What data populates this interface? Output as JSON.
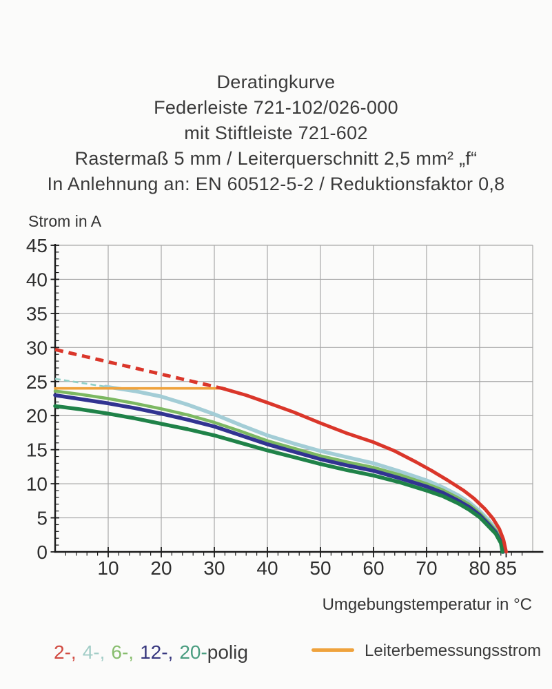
{
  "title": {
    "lines": [
      "Deratingkurve",
      "Federleiste 721-102/026-000",
      "mit Stiftleiste 721-602",
      "Rastermaß 5 mm / Leiterquerschnitt 2,5 mm² „f“",
      "In Anlehnung an: EN 60512-5-2 / Reduktionsfaktor 0,8"
    ]
  },
  "axes": {
    "y_title": "Strom in A",
    "x_title": "Umgebungstemperatur in °C"
  },
  "legend": {
    "poles": [
      {
        "label": "2-,",
        "color": "#d14b42",
        "gap": true
      },
      {
        "label": "4-,",
        "color": "#a2cdc7",
        "gap": true
      },
      {
        "label": "6-,",
        "color": "#87bd6d",
        "gap": true
      },
      {
        "label": "12-,",
        "color": "#38387f",
        "gap": true
      },
      {
        "label": "20-",
        "color": "#4a9d80",
        "gap": false
      },
      {
        "label": "polig",
        "color": "#3c3c3c",
        "gap": false
      }
    ],
    "rated": {
      "label": "Leiterbemessungsstrom",
      "color": "#efa23c"
    }
  },
  "chart_data": {
    "type": "line",
    "title": "Deratingkurve Federleiste 721-102/026-000 mit Stiftleiste 721-602",
    "subtitle": "Rastermaß 5 mm / Leiterquerschnitt 2,5 mm² „f“ — In Anlehnung an: EN 60512-5-2 / Reduktionsfaktor 0,8",
    "xlabel": "Umgebungstemperatur in °C",
    "ylabel": "Strom in A",
    "xlim": [
      0,
      90
    ],
    "ylim": [
      0,
      45
    ],
    "x_axis_end": 92,
    "grid": true,
    "legend_position": "bottom",
    "xticks_labeled": [
      10,
      20,
      30,
      40,
      50,
      60,
      70,
      80,
      85
    ],
    "yticks_labeled": [
      0,
      5,
      10,
      15,
      20,
      25,
      30,
      35,
      40,
      45
    ],
    "minor_x_step": 2,
    "minor_y_step": 1,
    "grid_x": [
      10,
      20,
      30,
      40,
      50,
      60,
      70,
      80,
      90
    ],
    "grid_y": [
      5,
      10,
      15,
      20,
      25,
      30,
      35,
      40,
      45
    ],
    "colors": {
      "grid": "#a8a8a8",
      "axis": "#1b1b1b",
      "tick_text": "#2e2e2e"
    },
    "series": [
      {
        "name": "4-polig",
        "color": "#a3cdd6",
        "width": 5.5,
        "segments": [
          {
            "style": "dashed",
            "color": "#90cfc6",
            "width": 2.6,
            "dash": "8 5",
            "points": [
              [
                0,
                25.4
              ],
              [
                9.5,
                24.25
              ]
            ]
          },
          {
            "style": "solid",
            "points": [
              [
                9.5,
                24.25
              ],
              [
                15,
                23.6
              ],
              [
                20,
                22.8
              ],
              [
                25,
                21.6
              ],
              [
                30,
                20.2
              ],
              [
                35,
                18.6
              ],
              [
                40,
                17.1
              ],
              [
                45,
                15.9
              ],
              [
                50,
                14.8
              ],
              [
                55,
                13.9
              ],
              [
                60,
                13.0
              ],
              [
                65,
                11.8
              ],
              [
                70,
                10.5
              ],
              [
                73,
                9.5
              ],
              [
                76,
                8.3
              ],
              [
                78,
                7.3
              ],
              [
                80,
                6.0
              ],
              [
                81.5,
                4.8
              ],
              [
                83,
                3.4
              ],
              [
                84,
                2.0
              ],
              [
                84.6,
                0
              ]
            ]
          }
        ]
      },
      {
        "name": "6-polig",
        "color": "#7cb862",
        "width": 4.5,
        "segments": [
          {
            "style": "solid",
            "points": [
              [
                0,
                23.6
              ],
              [
                5,
                23.1
              ],
              [
                10,
                22.5
              ],
              [
                15,
                21.8
              ],
              [
                20,
                21.0
              ],
              [
                25,
                20.1
              ],
              [
                30,
                19.0
              ],
              [
                35,
                17.7
              ],
              [
                40,
                16.3
              ],
              [
                45,
                15.2
              ],
              [
                50,
                14.1
              ],
              [
                55,
                13.2
              ],
              [
                60,
                12.4
              ],
              [
                65,
                11.3
              ],
              [
                70,
                10.0
              ],
              [
                73,
                9.1
              ],
              [
                76,
                7.9
              ],
              [
                78,
                7.0
              ],
              [
                80,
                5.7
              ],
              [
                81.5,
                4.5
              ],
              [
                83,
                3.2
              ],
              [
                84,
                1.8
              ],
              [
                84.5,
                0
              ]
            ]
          }
        ]
      },
      {
        "name": "12-polig",
        "color": "#313391",
        "width": 5.5,
        "segments": [
          {
            "style": "solid",
            "points": [
              [
                0,
                23.0
              ],
              [
                5,
                22.4
              ],
              [
                10,
                21.8
              ],
              [
                15,
                21.1
              ],
              [
                20,
                20.3
              ],
              [
                25,
                19.4
              ],
              [
                30,
                18.4
              ],
              [
                35,
                17.1
              ],
              [
                40,
                15.8
              ],
              [
                45,
                14.7
              ],
              [
                50,
                13.6
              ],
              [
                55,
                12.7
              ],
              [
                60,
                11.9
              ],
              [
                65,
                10.8
              ],
              [
                70,
                9.6
              ],
              [
                73,
                8.7
              ],
              [
                76,
                7.5
              ],
              [
                78,
                6.6
              ],
              [
                80,
                5.4
              ],
              [
                81.5,
                4.2
              ],
              [
                83,
                2.9
              ],
              [
                84,
                1.5
              ],
              [
                84.4,
                0
              ]
            ]
          }
        ]
      },
      {
        "name": "20-polig",
        "color": "#1f8248",
        "width": 5.5,
        "segments": [
          {
            "style": "solid",
            "points": [
              [
                0,
                21.4
              ],
              [
                5,
                20.9
              ],
              [
                10,
                20.3
              ],
              [
                15,
                19.6
              ],
              [
                20,
                18.8
              ],
              [
                25,
                18.0
              ],
              [
                30,
                17.1
              ],
              [
                35,
                16.0
              ],
              [
                40,
                14.9
              ],
              [
                45,
                13.9
              ],
              [
                50,
                12.9
              ],
              [
                55,
                12.0
              ],
              [
                60,
                11.2
              ],
              [
                65,
                10.2
              ],
              [
                70,
                9.0
              ],
              [
                73,
                8.2
              ],
              [
                76,
                7.1
              ],
              [
                78,
                6.2
              ],
              [
                80,
                5.1
              ],
              [
                81.5,
                3.9
              ],
              [
                83,
                2.7
              ],
              [
                84,
                1.3
              ],
              [
                84.3,
                0
              ]
            ]
          }
        ]
      },
      {
        "name": "Leiterbemessungsstrom",
        "color": "#efa23c",
        "width": 3.6,
        "segments": [
          {
            "style": "solid",
            "points": [
              [
                0,
                24
              ],
              [
                32,
                24
              ]
            ]
          }
        ]
      },
      {
        "name": "2-polig",
        "color": "#da362a",
        "width": 5,
        "segments": [
          {
            "style": "dashed",
            "dash": "12 8",
            "points": [
              [
                0,
                29.7
              ],
              [
                31.5,
                24.0
              ]
            ]
          },
          {
            "style": "solid",
            "points": [
              [
                31.5,
                24.0
              ],
              [
                36,
                23.0
              ],
              [
                40,
                21.9
              ],
              [
                45,
                20.5
              ],
              [
                50,
                18.9
              ],
              [
                55,
                17.4
              ],
              [
                60,
                16.1
              ],
              [
                64,
                14.8
              ],
              [
                68,
                13.2
              ],
              [
                71,
                11.9
              ],
              [
                74,
                10.5
              ],
              [
                77,
                9.0
              ],
              [
                79,
                7.8
              ],
              [
                81,
                6.3
              ],
              [
                82.5,
                4.9
              ],
              [
                83.7,
                3.4
              ],
              [
                84.5,
                1.8
              ],
              [
                85,
                0
              ]
            ]
          }
        ]
      }
    ]
  }
}
